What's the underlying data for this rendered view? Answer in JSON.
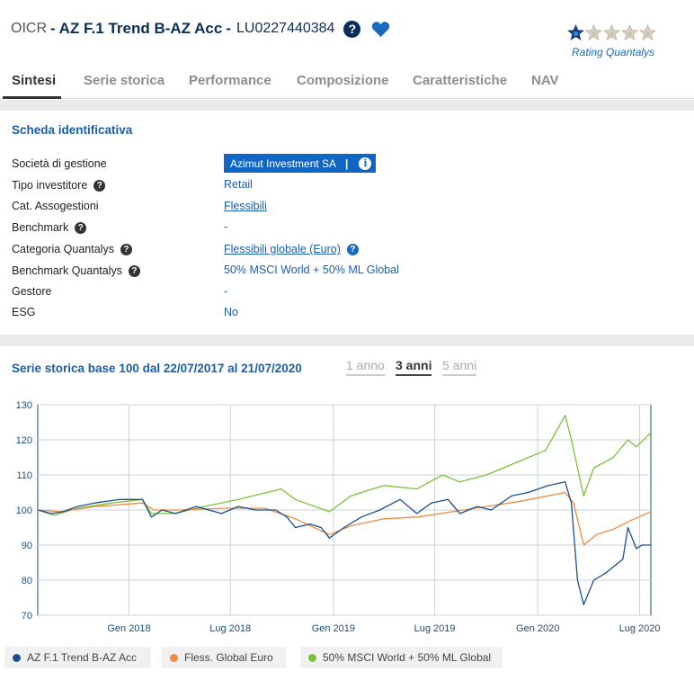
{
  "header": {
    "prefix": "OICR",
    "separator1": "-",
    "fund_name": "AZ F.1 Trend B-AZ Acc",
    "separator2": "-",
    "isin": "LU0227440384",
    "help_glyph": "?",
    "rating_stars_filled": 1,
    "rating_stars_total": 5,
    "rating_label": "Rating Quantalys"
  },
  "tabs": [
    {
      "label": "Sintesi",
      "active": true
    },
    {
      "label": "Serie storica",
      "active": false
    },
    {
      "label": "Performance",
      "active": false
    },
    {
      "label": "Composizione",
      "active": false
    },
    {
      "label": "Caratteristiche",
      "active": false
    },
    {
      "label": "NAV",
      "active": false
    }
  ],
  "id_card": {
    "title": "Scheda identificativa",
    "rows": [
      {
        "label": "Società di gestione",
        "value": "Azimut Investment SA",
        "value_sep": "|",
        "value_info": "i"
      },
      {
        "label": "Tipo investitore",
        "value": "Retail"
      },
      {
        "label": "Cat. Assogestioni",
        "value": "Flessibili"
      },
      {
        "label": "Benchmark",
        "value": "-"
      },
      {
        "label": "Categoria Quantalys",
        "value": "Flessibili globale (Euro)"
      },
      {
        "label": "Benchmark Quantalys",
        "value": "50% MSCI World + 50% ML Global"
      },
      {
        "label": "Gestore",
        "value": "-"
      },
      {
        "label": "ESG",
        "value": "No"
      }
    ],
    "help_glyph": "?"
  },
  "history": {
    "title": "Serie storica base 100 dal 22/07/2017 al 21/07/2020",
    "ranges": [
      {
        "label": "1 anno",
        "active": false
      },
      {
        "label": "3 anni",
        "active": true
      },
      {
        "label": "5 anni",
        "active": false
      }
    ]
  },
  "colors": {
    "fund": "#1c4f8f",
    "category": "#f08a3c",
    "benchmark": "#7cc13a",
    "accent": "#1066c4",
    "link": "#1a5ea8"
  },
  "chart_data": {
    "type": "line",
    "title": "",
    "xlabel": "",
    "ylabel": "",
    "ylim": [
      70,
      130
    ],
    "yticks": [
      "130",
      "120",
      "110",
      "100",
      "90",
      "80",
      "70"
    ],
    "xticks": [
      "Gen 2018",
      "Lug 2018",
      "Gen 2019",
      "Lug 2019",
      "Gen 2020",
      "Lug 2020"
    ],
    "xtick_dates": [
      "2018-01-01",
      "2018-07-01",
      "2019-01-01",
      "2019-07-01",
      "2020-01-01",
      "2020-07-01"
    ],
    "xrange": [
      "2017-07-22",
      "2020-07-21"
    ],
    "grid": true,
    "legend_position": "bottom-left",
    "series": [
      {
        "name": "AZ F.1 Trend B-AZ Acc",
        "color_key": "fund",
        "points": [
          [
            "2017-07-22",
            100
          ],
          [
            "2017-08-15",
            99
          ],
          [
            "2017-09-05",
            99.5
          ],
          [
            "2017-10-01",
            101
          ],
          [
            "2017-11-01",
            102
          ],
          [
            "2017-12-15",
            103
          ],
          [
            "2018-01-25",
            103
          ],
          [
            "2018-02-10",
            98
          ],
          [
            "2018-03-01",
            100
          ],
          [
            "2018-03-25",
            99
          ],
          [
            "2018-05-01",
            101
          ],
          [
            "2018-06-15",
            99
          ],
          [
            "2018-07-15",
            101
          ],
          [
            "2018-08-15",
            100
          ],
          [
            "2018-09-20",
            100
          ],
          [
            "2018-10-10",
            98
          ],
          [
            "2018-10-25",
            95
          ],
          [
            "2018-11-20",
            96
          ],
          [
            "2018-12-10",
            95
          ],
          [
            "2018-12-25",
            92
          ],
          [
            "2019-01-20",
            95
          ],
          [
            "2019-02-20",
            98
          ],
          [
            "2019-03-25",
            100
          ],
          [
            "2019-04-30",
            103
          ],
          [
            "2019-05-30",
            99
          ],
          [
            "2019-06-25",
            102
          ],
          [
            "2019-07-25",
            103
          ],
          [
            "2019-08-15",
            99
          ],
          [
            "2019-09-15",
            101
          ],
          [
            "2019-10-10",
            100
          ],
          [
            "2019-11-15",
            104
          ],
          [
            "2019-12-15",
            105
          ],
          [
            "2020-01-20",
            107
          ],
          [
            "2020-02-19",
            108
          ],
          [
            "2020-03-01",
            102
          ],
          [
            "2020-03-12",
            80
          ],
          [
            "2020-03-23",
            73
          ],
          [
            "2020-04-10",
            80
          ],
          [
            "2020-05-01",
            82
          ],
          [
            "2020-06-01",
            86
          ],
          [
            "2020-06-10",
            95
          ],
          [
            "2020-06-25",
            89
          ],
          [
            "2020-07-05",
            90
          ],
          [
            "2020-07-21",
            90
          ]
        ]
      },
      {
        "name": "Fless. Global Euro",
        "color_key": "category",
        "points": [
          [
            "2017-07-22",
            100
          ],
          [
            "2017-09-01",
            99.5
          ],
          [
            "2017-11-01",
            101
          ],
          [
            "2018-01-25",
            102
          ],
          [
            "2018-02-15",
            100
          ],
          [
            "2018-04-01",
            100
          ],
          [
            "2018-06-15",
            100.5
          ],
          [
            "2018-09-01",
            100.5
          ],
          [
            "2018-10-25",
            97.5
          ],
          [
            "2018-12-25",
            93
          ],
          [
            "2019-02-01",
            95.5
          ],
          [
            "2019-04-01",
            97.5
          ],
          [
            "2019-06-01",
            98
          ],
          [
            "2019-08-01",
            99.5
          ],
          [
            "2019-10-01",
            101
          ],
          [
            "2019-12-01",
            102.5
          ],
          [
            "2020-02-19",
            105
          ],
          [
            "2020-03-05",
            102
          ],
          [
            "2020-03-23",
            90
          ],
          [
            "2020-04-15",
            93
          ],
          [
            "2020-05-15",
            94.5
          ],
          [
            "2020-06-15",
            97
          ],
          [
            "2020-07-21",
            99.5
          ]
        ]
      },
      {
        "name": "50% MSCI World + 50% ML Global",
        "color_key": "benchmark",
        "points": [
          [
            "2017-07-22",
            100
          ],
          [
            "2017-08-20",
            98.5
          ],
          [
            "2017-10-01",
            100.5
          ],
          [
            "2017-12-01",
            102
          ],
          [
            "2018-01-25",
            103
          ],
          [
            "2018-02-10",
            99
          ],
          [
            "2018-03-25",
            99
          ],
          [
            "2018-05-15",
            101
          ],
          [
            "2018-07-15",
            103
          ],
          [
            "2018-09-30",
            106
          ],
          [
            "2018-10-25",
            103
          ],
          [
            "2018-12-25",
            99.5
          ],
          [
            "2019-02-01",
            104
          ],
          [
            "2019-04-01",
            107
          ],
          [
            "2019-05-30",
            106
          ],
          [
            "2019-07-15",
            110
          ],
          [
            "2019-08-15",
            108
          ],
          [
            "2019-10-01",
            110
          ],
          [
            "2019-12-01",
            114
          ],
          [
            "2020-01-15",
            117
          ],
          [
            "2020-02-19",
            127
          ],
          [
            "2020-03-01",
            120
          ],
          [
            "2020-03-23",
            104
          ],
          [
            "2020-04-10",
            112
          ],
          [
            "2020-05-15",
            115
          ],
          [
            "2020-06-10",
            120
          ],
          [
            "2020-06-25",
            118
          ],
          [
            "2020-07-21",
            122
          ]
        ]
      }
    ]
  }
}
